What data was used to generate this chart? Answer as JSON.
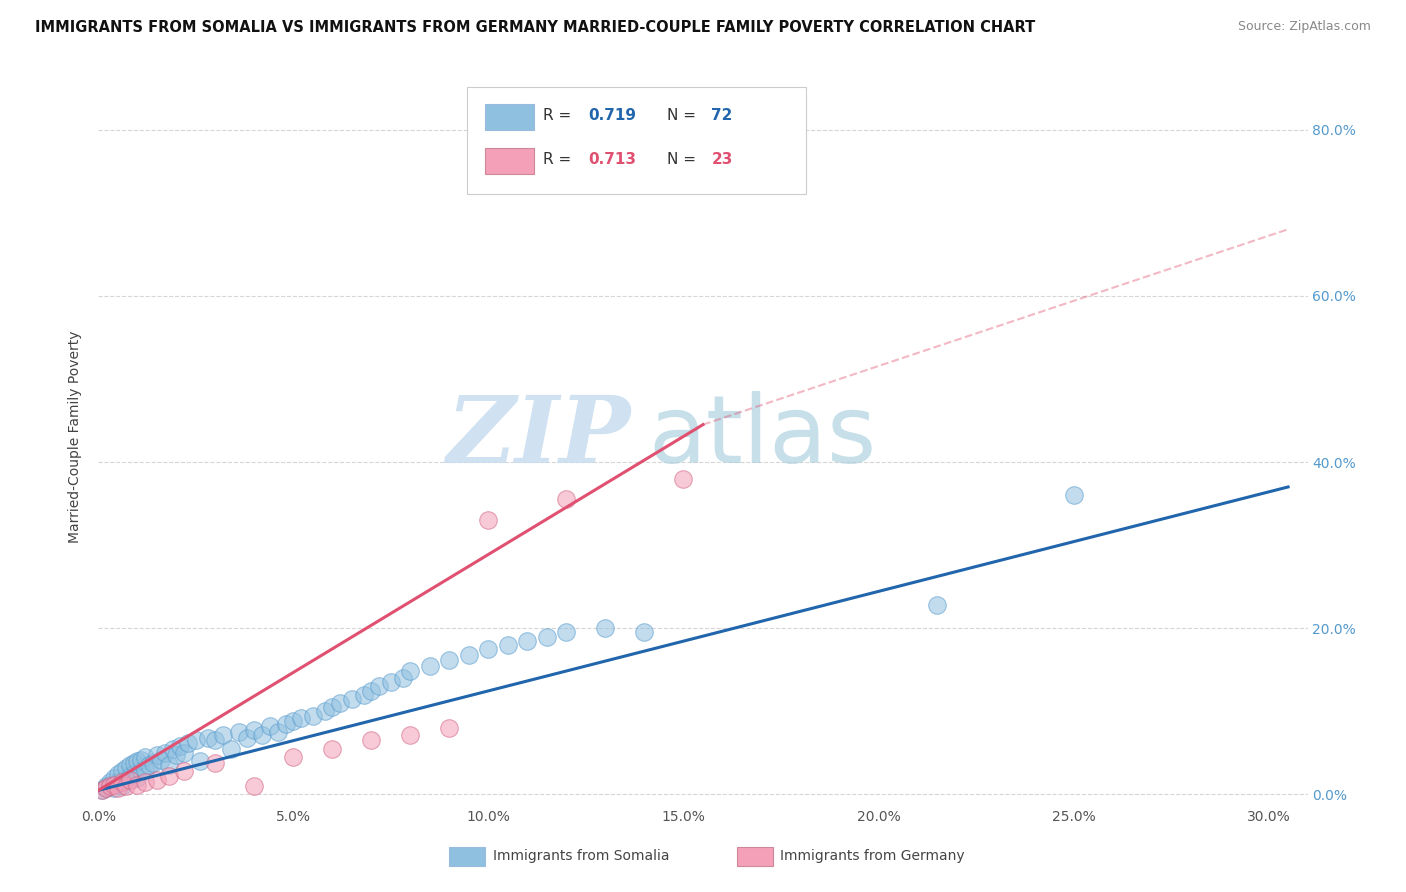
{
  "title": "IMMIGRANTS FROM SOMALIA VS IMMIGRANTS FROM GERMANY MARRIED-COUPLE FAMILY POVERTY CORRELATION CHART",
  "source": "Source: ZipAtlas.com",
  "ylabel": "Married-Couple Family Poverty",
  "xlim": [
    0.0,
    0.31
  ],
  "ylim": [
    -0.01,
    0.87
  ],
  "xtick_vals": [
    0.0,
    0.05,
    0.1,
    0.15,
    0.2,
    0.25,
    0.3
  ],
  "ytick_vals": [
    0.0,
    0.2,
    0.4,
    0.6,
    0.8
  ],
  "ytick_labels": [
    "0.0%",
    "20.0%",
    "40.0%",
    "60.0%",
    "80.0%"
  ],
  "xtick_labels": [
    "0.0%",
    "5.0%",
    "10.0%",
    "15.0%",
    "20.0%",
    "25.0%",
    "30.0%"
  ],
  "somalia_R": "0.719",
  "somalia_N": "72",
  "germany_R": "0.713",
  "germany_N": "23",
  "somalia_color": "#90C0E0",
  "germany_color": "#F4A0B8",
  "somalia_line_color": "#2166AC",
  "germany_line_color": "#E05070",
  "somalia_line": [
    0.0,
    0.305,
    0.005,
    0.37
  ],
  "germany_solid_line": [
    0.0,
    0.155,
    0.005,
    0.445
  ],
  "germany_dashed_line": [
    0.155,
    0.305,
    0.445,
    0.68
  ],
  "legend_label_somalia": "Immigrants from Somalia",
  "legend_label_germany": "Immigrants from Germany",
  "somalia_x": [
    0.001,
    0.002,
    0.002,
    0.003,
    0.003,
    0.004,
    0.004,
    0.005,
    0.005,
    0.006,
    0.006,
    0.007,
    0.007,
    0.008,
    0.008,
    0.009,
    0.009,
    0.01,
    0.01,
    0.011,
    0.011,
    0.012,
    0.012,
    0.013,
    0.014,
    0.015,
    0.016,
    0.017,
    0.018,
    0.019,
    0.02,
    0.021,
    0.022,
    0.023,
    0.025,
    0.026,
    0.028,
    0.03,
    0.032,
    0.034,
    0.036,
    0.038,
    0.04,
    0.042,
    0.044,
    0.046,
    0.048,
    0.05,
    0.052,
    0.055,
    0.058,
    0.06,
    0.062,
    0.065,
    0.068,
    0.07,
    0.072,
    0.075,
    0.078,
    0.08,
    0.085,
    0.09,
    0.095,
    0.1,
    0.105,
    0.11,
    0.115,
    0.12,
    0.13,
    0.14,
    0.215,
    0.25
  ],
  "somalia_y": [
    0.005,
    0.008,
    0.01,
    0.012,
    0.015,
    0.008,
    0.02,
    0.015,
    0.025,
    0.01,
    0.028,
    0.018,
    0.032,
    0.022,
    0.035,
    0.025,
    0.038,
    0.02,
    0.04,
    0.028,
    0.042,
    0.03,
    0.045,
    0.035,
    0.038,
    0.048,
    0.042,
    0.05,
    0.035,
    0.055,
    0.048,
    0.058,
    0.05,
    0.062,
    0.065,
    0.04,
    0.068,
    0.065,
    0.072,
    0.055,
    0.075,
    0.068,
    0.078,
    0.072,
    0.082,
    0.075,
    0.085,
    0.088,
    0.092,
    0.095,
    0.1,
    0.105,
    0.11,
    0.115,
    0.12,
    0.125,
    0.13,
    0.135,
    0.14,
    0.148,
    0.155,
    0.162,
    0.168,
    0.175,
    0.18,
    0.185,
    0.19,
    0.195,
    0.2,
    0.195,
    0.228,
    0.36
  ],
  "germany_x": [
    0.001,
    0.002,
    0.003,
    0.004,
    0.005,
    0.006,
    0.007,
    0.008,
    0.01,
    0.012,
    0.015,
    0.018,
    0.022,
    0.03,
    0.04,
    0.05,
    0.06,
    0.07,
    0.08,
    0.09,
    0.1,
    0.12,
    0.15
  ],
  "germany_y": [
    0.005,
    0.008,
    0.01,
    0.012,
    0.008,
    0.015,
    0.01,
    0.018,
    0.012,
    0.015,
    0.018,
    0.022,
    0.028,
    0.038,
    0.01,
    0.045,
    0.055,
    0.065,
    0.072,
    0.08,
    0.33,
    0.355,
    0.38
  ]
}
